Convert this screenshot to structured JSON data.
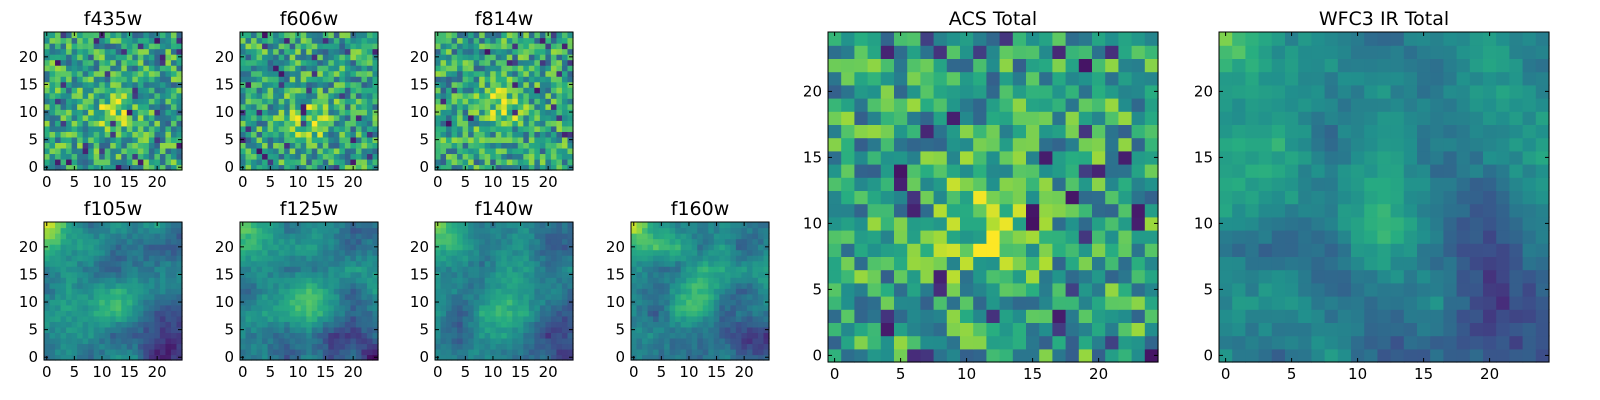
{
  "chart_data": [
    {
      "type": "heatmap",
      "title": "f435w",
      "size": 25,
      "xticks": [
        0,
        5,
        10,
        15,
        20
      ],
      "yticks": [
        0,
        5,
        10,
        15,
        20
      ],
      "colormap": "viridis",
      "pattern": "noisy",
      "bright_center": [
        12,
        10
      ]
    },
    {
      "type": "heatmap",
      "title": "f606w",
      "size": 25,
      "xticks": [
        0,
        5,
        10,
        15,
        20
      ],
      "yticks": [
        0,
        5,
        10,
        15,
        20
      ],
      "colormap": "viridis",
      "pattern": "noisy",
      "bright_center": [
        12,
        9
      ]
    },
    {
      "type": "heatmap",
      "title": "f814w",
      "size": 25,
      "xticks": [
        0,
        5,
        10,
        15,
        20
      ],
      "yticks": [
        0,
        5,
        10,
        15,
        20
      ],
      "colormap": "viridis",
      "pattern": "noisy",
      "bright_center": [
        12,
        11
      ]
    },
    {
      "type": "heatmap",
      "title": "f105w",
      "size": 25,
      "xticks": [
        0,
        5,
        10,
        15,
        20
      ],
      "yticks": [
        0,
        5,
        10,
        15,
        20
      ],
      "colormap": "viridis",
      "pattern": "smooth",
      "bright_center": [
        12,
        10
      ],
      "bright_corner": "top-left"
    },
    {
      "type": "heatmap",
      "title": "f125w",
      "size": 25,
      "xticks": [
        0,
        5,
        10,
        15,
        20
      ],
      "yticks": [
        0,
        5,
        10,
        15,
        20
      ],
      "colormap": "viridis",
      "pattern": "smooth",
      "bright_center": [
        12,
        10
      ],
      "bright_corner": "top-left"
    },
    {
      "type": "heatmap",
      "title": "f140w",
      "size": 25,
      "xticks": [
        0,
        5,
        10,
        15,
        20
      ],
      "yticks": [
        0,
        5,
        10,
        15,
        20
      ],
      "colormap": "viridis",
      "pattern": "smooth",
      "bright_center": [
        12,
        11
      ],
      "bright_corner": "top-left"
    },
    {
      "type": "heatmap",
      "title": "f160w",
      "size": 25,
      "xticks": [
        0,
        5,
        10,
        15,
        20
      ],
      "yticks": [
        0,
        5,
        10,
        15,
        20
      ],
      "colormap": "viridis",
      "pattern": "smooth",
      "bright_center": [
        12,
        11
      ],
      "bright_corner": "top-left"
    },
    {
      "type": "heatmap",
      "title": "ACS Total",
      "size": 25,
      "xticks": [
        0,
        5,
        10,
        15,
        20
      ],
      "yticks": [
        0,
        5,
        10,
        15,
        20
      ],
      "colormap": "viridis",
      "pattern": "noisy",
      "bright_center": [
        12,
        10
      ]
    },
    {
      "type": "heatmap",
      "title": "WFC3 IR Total",
      "size": 25,
      "xticks": [
        0,
        5,
        10,
        15,
        20
      ],
      "yticks": [
        0,
        5,
        10,
        15,
        20
      ],
      "colormap": "viridis",
      "pattern": "smooth",
      "bright_center": [
        12,
        11
      ],
      "bright_corner": "top-left"
    }
  ],
  "colors": {
    "viridis_low": "#440154",
    "viridis_mid": "#21918c",
    "viridis_high": "#fde725"
  }
}
